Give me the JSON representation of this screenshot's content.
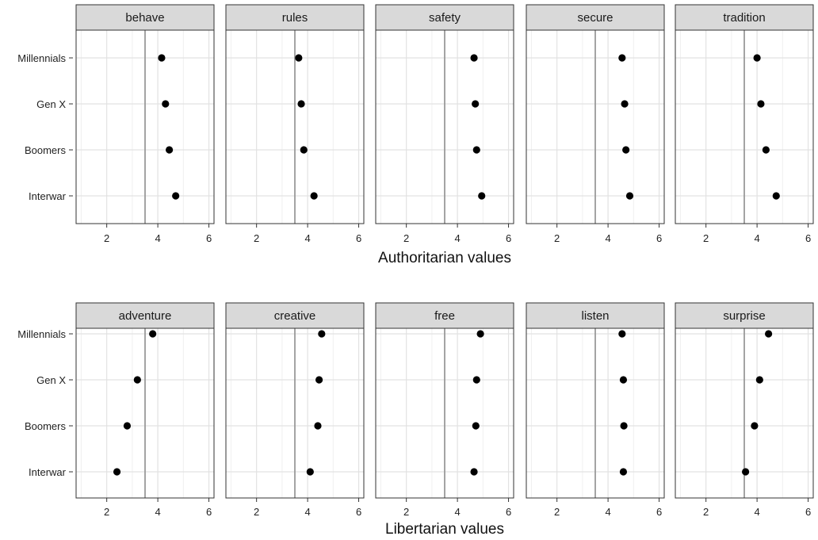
{
  "chart_data": [
    {
      "type": "scatter",
      "xlabel": "Authoritarian values",
      "ylabel": "",
      "xlim": [
        0.8,
        6.2
      ],
      "x_ticks": [
        "2",
        "4",
        "6"
      ],
      "y_categories": [
        "Millennials",
        "Gen X",
        "Boomers",
        "Interwar"
      ],
      "reference_x": 3.5,
      "grid": true,
      "panels": [
        {
          "label": "behave",
          "values": [
            4.15,
            4.3,
            4.45,
            4.7
          ]
        },
        {
          "label": "rules",
          "values": [
            3.65,
            3.75,
            3.85,
            4.25
          ]
        },
        {
          "label": "safety",
          "values": [
            4.65,
            4.7,
            4.75,
            4.95
          ]
        },
        {
          "label": "secure",
          "values": [
            4.55,
            4.65,
            4.7,
            4.85
          ]
        },
        {
          "label": "tradition",
          "values": [
            4.0,
            4.15,
            4.35,
            4.75
          ]
        }
      ]
    },
    {
      "type": "scatter",
      "xlabel": "Libertarian values",
      "ylabel": "",
      "xlim": [
        0.8,
        6.2
      ],
      "x_ticks": [
        "2",
        "4",
        "6"
      ],
      "y_categories": [
        "Millennials",
        "Gen X",
        "Boomers",
        "Interwar"
      ],
      "reference_x": 3.5,
      "grid": true,
      "panels": [
        {
          "label": "adventure",
          "values": [
            3.8,
            3.2,
            2.8,
            2.4
          ]
        },
        {
          "label": "creative",
          "values": [
            4.55,
            4.45,
            4.4,
            4.1
          ]
        },
        {
          "label": "free",
          "values": [
            4.9,
            4.75,
            4.72,
            4.65
          ]
        },
        {
          "label": "listen",
          "values": [
            4.55,
            4.6,
            4.62,
            4.6
          ]
        },
        {
          "label": "surprise",
          "values": [
            4.45,
            4.1,
            3.9,
            3.55
          ]
        }
      ]
    }
  ]
}
